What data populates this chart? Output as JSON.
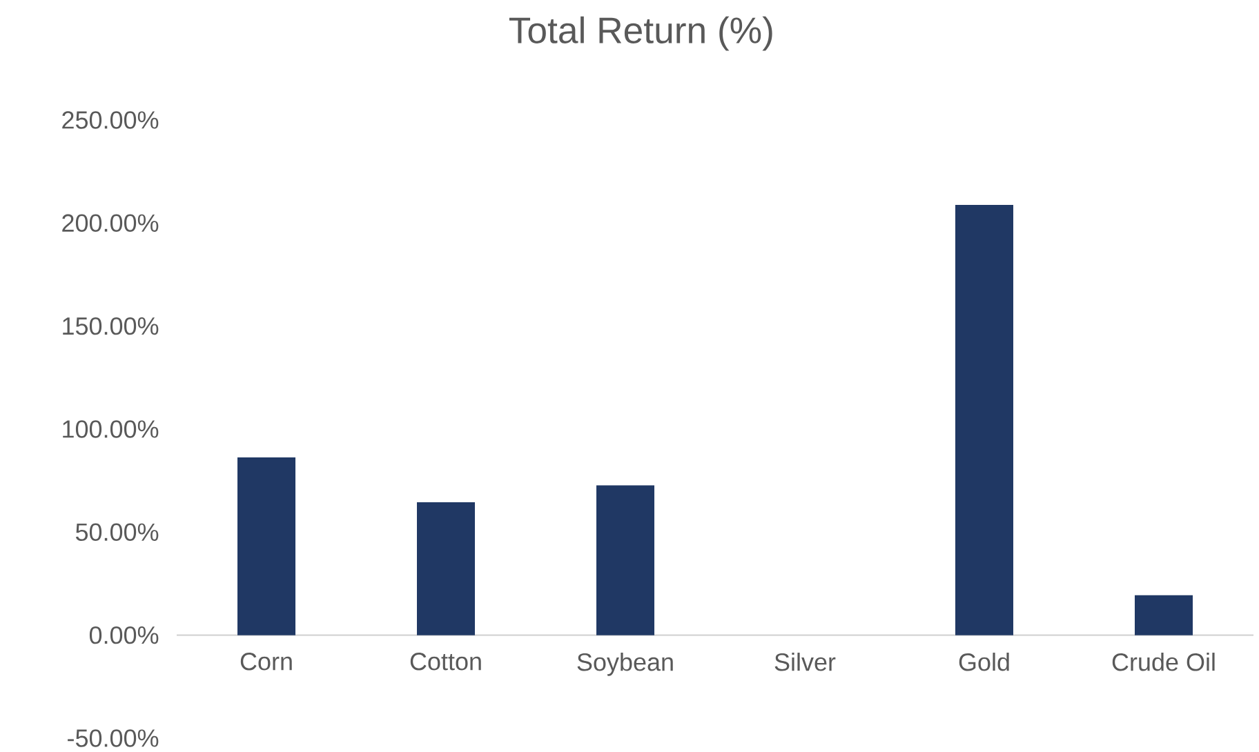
{
  "chart_data": {
    "type": "bar",
    "title": "Total Return (%)",
    "categories": [
      "Corn",
      "Cotton",
      "Soybean",
      "Silver",
      "Gold",
      "Crude Oil"
    ],
    "values": [
      86.3,
      64.5,
      72.7,
      0,
      208.8,
      19.4
    ],
    "color": "#203864",
    "ylim": [
      -50,
      250
    ],
    "yticks": [
      {
        "value": -50,
        "label": "-50.00%"
      },
      {
        "value": 0,
        "label": "0.00%"
      },
      {
        "value": 50,
        "label": "50.00%"
      },
      {
        "value": 100,
        "label": "100.00%"
      },
      {
        "value": 150,
        "label": "150.00%"
      },
      {
        "value": 200,
        "label": "200.00%"
      },
      {
        "value": 250,
        "label": "250.00%"
      }
    ],
    "grid": false
  }
}
